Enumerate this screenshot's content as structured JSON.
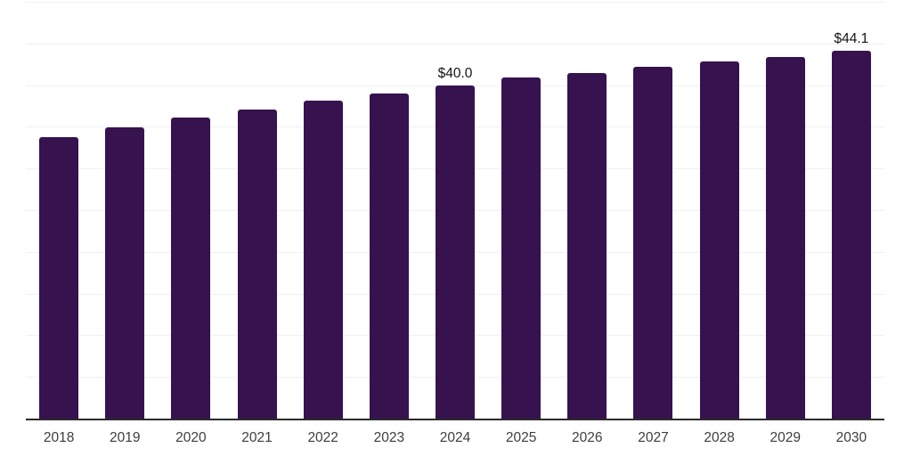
{
  "chart_data": {
    "type": "bar",
    "title": "",
    "xlabel": "",
    "ylabel": "",
    "categories": [
      "2018",
      "2019",
      "2020",
      "2021",
      "2022",
      "2023",
      "2024",
      "2025",
      "2026",
      "2027",
      "2028",
      "2029",
      "2030"
    ],
    "values": [
      33.8,
      34.9,
      36.1,
      37.1,
      38.1,
      39.0,
      40.0,
      40.9,
      41.5,
      42.2,
      42.8,
      43.4,
      44.1
    ],
    "labeled_points": [
      {
        "category": "2024",
        "label": "$40.0"
      },
      {
        "category": "2030",
        "label": "$44.1"
      }
    ],
    "ylim": [
      0,
      50
    ],
    "grid_step": 5,
    "grid": true,
    "legend": "none",
    "y_axis_labels_visible": false,
    "bar_color": "#36124f",
    "gridline_color": "#f0f0f0",
    "axis_line_color": "#2b2b2b",
    "tick_label_color": "#3d3d3d",
    "value_label_color": "#141414",
    "background_color": "#ffffff"
  }
}
